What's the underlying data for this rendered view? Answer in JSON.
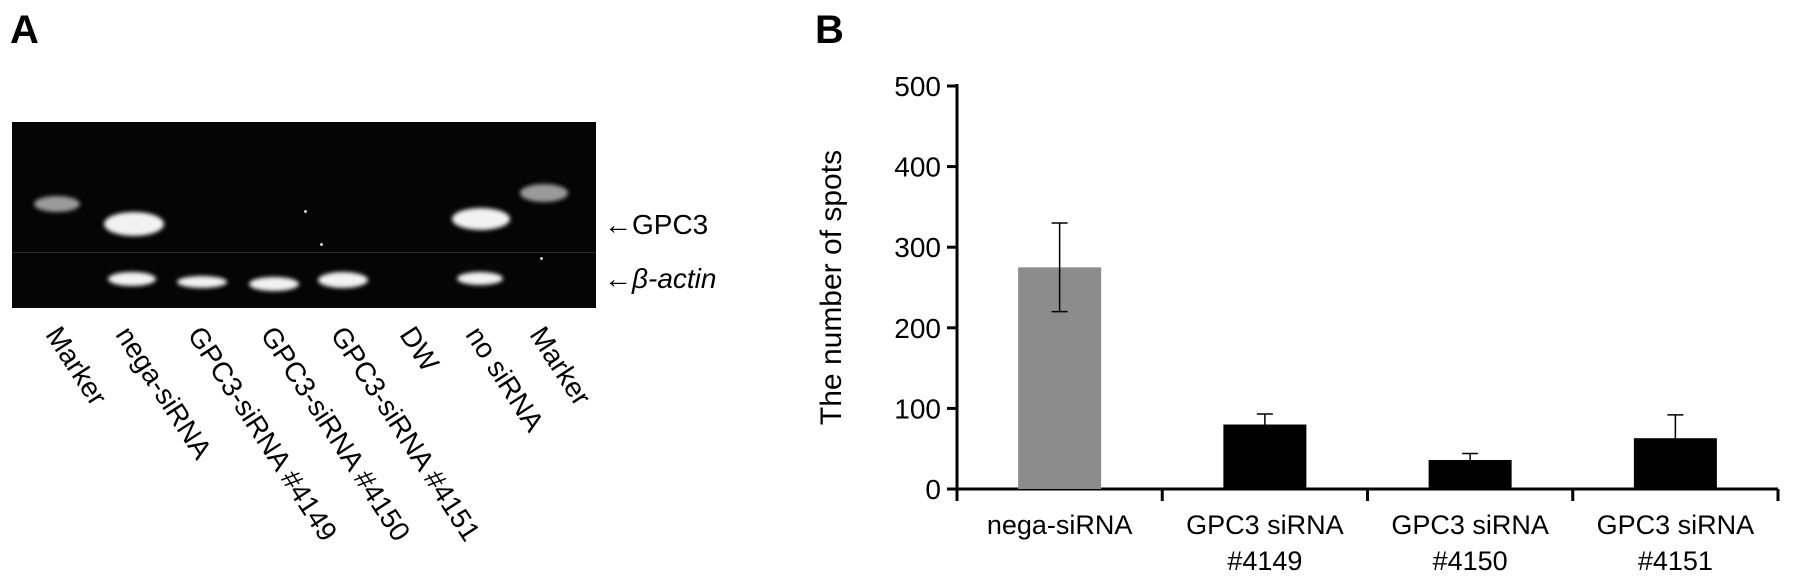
{
  "panel_a": {
    "label": "A",
    "annotations": {
      "gpc3": "←GPC3",
      "actin_arrow": "←",
      "actin": "β-actin"
    },
    "lanes": [
      "Marker",
      "nega-siRNA",
      "GPC3-siRNA #4149",
      "GPC3-siRNA #4150",
      "GPC3-siRNA #4151",
      "DW",
      "no siRNA",
      "Marker"
    ]
  },
  "panel_b": {
    "label": "B"
  },
  "chart_data": {
    "type": "bar",
    "categories": [
      "nega-siRNA",
      "GPC3 siRNA\n#4149",
      "GPC3 siRNA\n#4150",
      "GPC3 siRNA\n#4151"
    ],
    "values": [
      275,
      80,
      36,
      63
    ],
    "errors": [
      55,
      13,
      8,
      29
    ],
    "bar_colors": [
      "#8c8c8c",
      "#000000",
      "#000000",
      "#000000"
    ],
    "ylabel": "The number of spots",
    "xlabel": "",
    "ylim": [
      0,
      500
    ],
    "yticks": [
      0,
      100,
      200,
      300,
      400,
      500
    ],
    "grid": false
  }
}
